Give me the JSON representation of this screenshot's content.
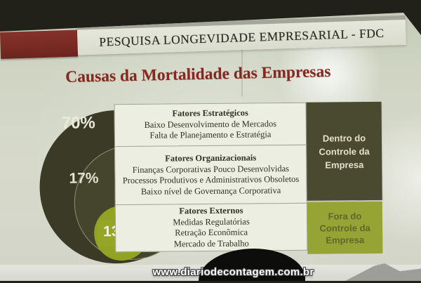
{
  "header": {
    "bar_text": "PESQUISA LONGEVIDADE EMPRESARIAL - FDC"
  },
  "title": {
    "text": "Causas da Mortalidade das Empresas"
  },
  "diagram": {
    "type": "concentric-circles",
    "segments": [
      {
        "pct": "70%",
        "category": "Fatores Estratégicos",
        "items": [
          "Baixo Desenvolvimento de Mercados",
          "Falta de Planejamento e Estratégia"
        ]
      },
      {
        "pct": "17%",
        "category": "Fatores Organizacionais",
        "items": [
          "Finanças Corporativas Pouco Desenvolvidas",
          "Processos Produtivos e Administrativos Obsoletos",
          "Baixo nível de Governança Corporativa"
        ]
      },
      {
        "pct": "13%",
        "category": "Fatores Externos",
        "items": [
          "Medidas Regulatórias",
          "Retração Econômica",
          "Mercado de Trabalho"
        ]
      }
    ],
    "right_labels": [
      {
        "text": "Dentro do Controle da Empresa"
      },
      {
        "text": "Fora do Controle da Empresa"
      }
    ]
  },
  "watermark": {
    "text": "www.diariodecontagem.com.br"
  },
  "colors": {
    "header_red": "#7a2b24",
    "title_red": "#84291f",
    "dark_olive_circle": "#3a3a27",
    "green_accent": "#92a324",
    "slide_background": "#d2d6c6"
  }
}
